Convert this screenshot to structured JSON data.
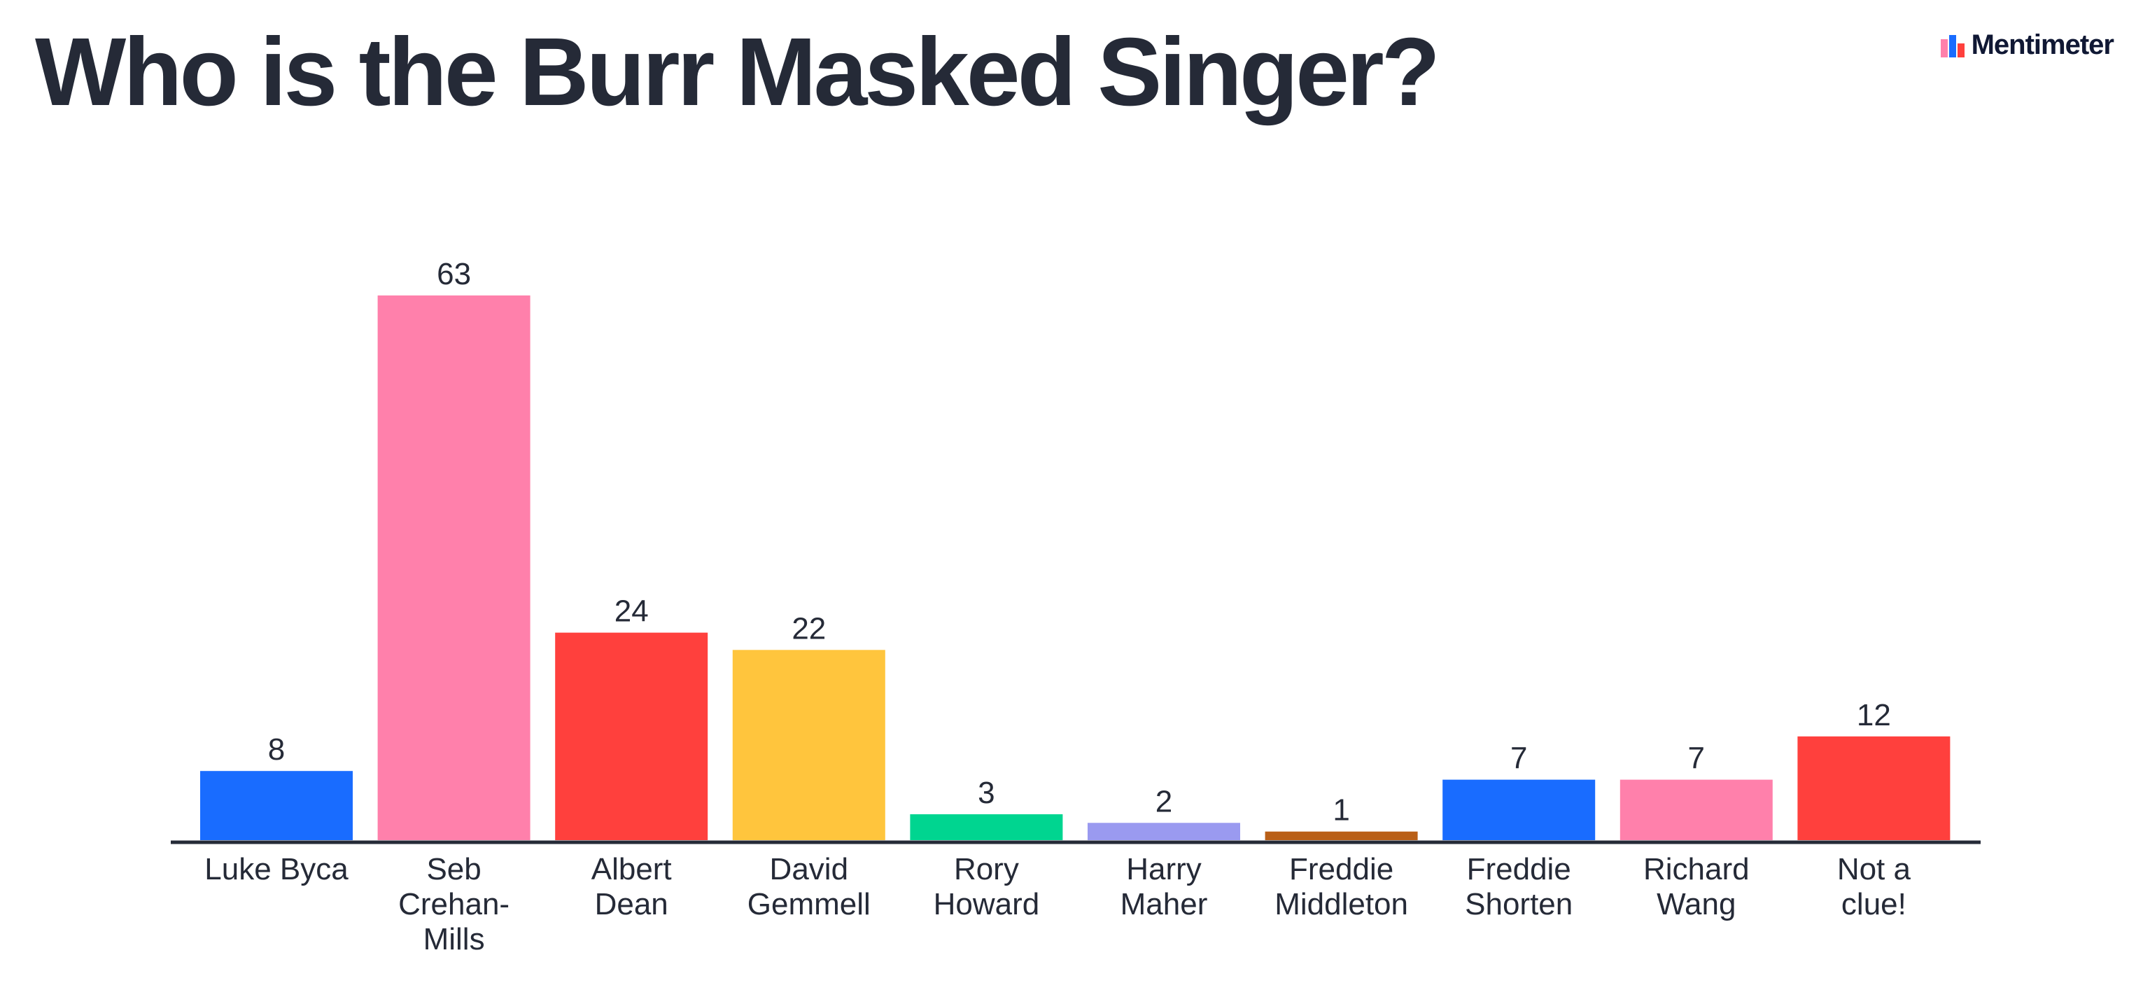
{
  "header": {
    "brand_name": "Mentimeter"
  },
  "chart_data": {
    "type": "bar",
    "title": "Who is the Burr Masked Singer?",
    "xlabel": "",
    "ylabel": "",
    "ylim": [
      0,
      63
    ],
    "grid": false,
    "legend": "none",
    "categories": [
      [
        "Luke Byca"
      ],
      [
        "Seb",
        "Crehan-",
        "Mills"
      ],
      [
        "Albert",
        "Dean"
      ],
      [
        "David",
        "Gemmell"
      ],
      [
        "Rory",
        "Howard"
      ],
      [
        "Harry",
        "Maher"
      ],
      [
        "Freddie",
        "Middleton"
      ],
      [
        "Freddie",
        "Shorten"
      ],
      [
        "Richard",
        "Wang"
      ],
      [
        "Not a",
        "clue!"
      ]
    ],
    "values": [
      8,
      63,
      24,
      22,
      3,
      2,
      1,
      7,
      7,
      12
    ],
    "colors": [
      "#196cff",
      "#ff80ab",
      "#ff403d",
      "#ffc53d",
      "#00d590",
      "#9a9af0",
      "#b95f17",
      "#196cff",
      "#ff80ab",
      "#ff403d"
    ]
  }
}
